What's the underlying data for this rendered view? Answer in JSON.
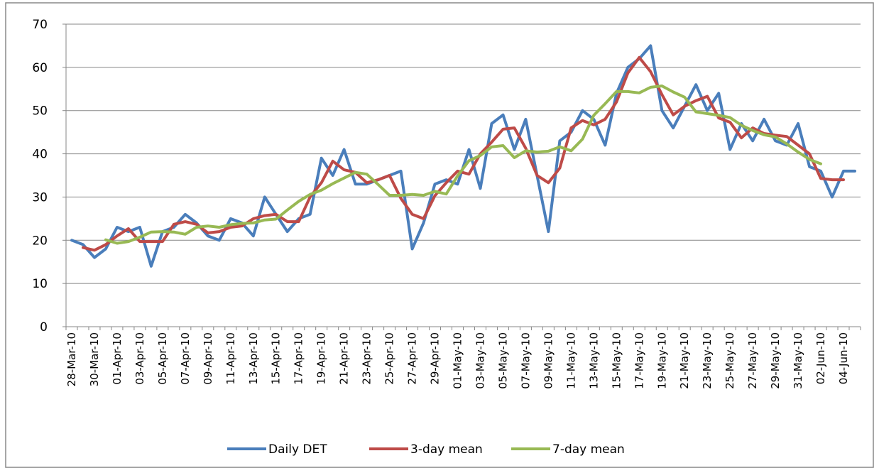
{
  "chart_data": {
    "type": "line",
    "categories": [
      "28-Mar-10",
      null,
      "30-Mar-10",
      null,
      "01-Apr-10",
      null,
      "03-Apr-10",
      null,
      "05-Apr-10",
      null,
      "07-Apr-10",
      null,
      "09-Apr-10",
      null,
      "11-Apr-10",
      null,
      "13-Apr-10",
      null,
      "15-Apr-10",
      null,
      "17-Apr-10",
      null,
      "19-Apr-10",
      null,
      "21-Apr-10",
      null,
      "23-Apr-10",
      null,
      "25-Apr-10",
      null,
      "27-Apr-10",
      null,
      "29-Apr-10",
      null,
      "01-May-10",
      null,
      "03-May-10",
      null,
      "05-May-10",
      null,
      "07-May-10",
      null,
      "09-May-10",
      null,
      "11-May-10",
      null,
      "13-May-10",
      null,
      "15-May-10",
      null,
      "17-May-10",
      null,
      "19-May-10",
      null,
      "21-May-10",
      null,
      "23-May-10",
      null,
      "25-May-10",
      null,
      "27-May-10",
      null,
      "29-May-10",
      null,
      "31-May-10",
      null,
      "02-Jun-10",
      null,
      "04-Jun-10",
      null
    ],
    "series": [
      {
        "name": "Daily DET",
        "color": "#4a7ebb",
        "values": [
          20,
          19,
          16,
          18,
          23,
          22,
          23,
          14,
          22,
          23,
          26,
          24,
          21,
          20,
          25,
          24,
          21,
          30,
          26,
          22,
          25,
          26,
          39,
          35,
          41,
          33,
          33,
          34,
          35,
          36,
          18,
          24,
          33,
          34,
          33,
          41,
          32,
          47,
          49,
          41,
          48,
          35,
          22,
          43,
          45,
          50,
          48,
          42,
          54,
          60,
          62,
          65,
          50,
          46,
          51,
          56,
          50,
          54,
          41,
          47,
          43,
          48,
          43,
          42,
          47,
          37,
          36,
          30,
          36,
          36
        ]
      },
      {
        "name": "3-day mean",
        "color": "#be4b48",
        "values": [
          null,
          18.3,
          17.7,
          19,
          21,
          22.7,
          19.7,
          19.7,
          19.7,
          23.7,
          24.3,
          23.7,
          21.7,
          22,
          23,
          23.3,
          25,
          25.7,
          26,
          24.3,
          24.3,
          30,
          33.3,
          38.3,
          36.3,
          35.7,
          33.3,
          34,
          35,
          29.7,
          26,
          25,
          30.3,
          33.3,
          36,
          35.3,
          40,
          42.7,
          45.7,
          46,
          41.3,
          35,
          33.3,
          36.7,
          46,
          47.7,
          46.7,
          48,
          52,
          58.7,
          62.3,
          59,
          53.7,
          49,
          51,
          52.3,
          53.3,
          48.3,
          47.3,
          43.7,
          46,
          44.7,
          44.3,
          44,
          42,
          40,
          34.3,
          34,
          34,
          null
        ]
      },
      {
        "name": "7-day mean",
        "color": "#98b954",
        "values": [
          null,
          null,
          null,
          20.1,
          19.3,
          19.7,
          20.7,
          21.9,
          22,
          21.9,
          21.4,
          23,
          23.3,
          23,
          23.6,
          23.9,
          24,
          24.7,
          24.9,
          27,
          29,
          30.6,
          31.6,
          33.1,
          34.4,
          35.7,
          35.3,
          32.9,
          30.4,
          30.4,
          30.6,
          30.4,
          31.3,
          30.7,
          34.9,
          38.4,
          39.6,
          41.6,
          41.9,
          39.1,
          40.7,
          40.4,
          40.6,
          41.6,
          40.7,
          43.4,
          48.9,
          51.6,
          54.4,
          54.4,
          54.1,
          55.4,
          55.7,
          54.3,
          53.1,
          49.7,
          49.3,
          48.9,
          48.4,
          46.6,
          45.4,
          44.4,
          43.9,
          42.3,
          40.4,
          38.7,
          37.7,
          null,
          null,
          null
        ]
      }
    ],
    "ylim": [
      0,
      70
    ],
    "yticks": [
      0,
      10,
      20,
      30,
      40,
      50,
      60,
      70
    ],
    "grid": true,
    "legend": "bottom"
  }
}
